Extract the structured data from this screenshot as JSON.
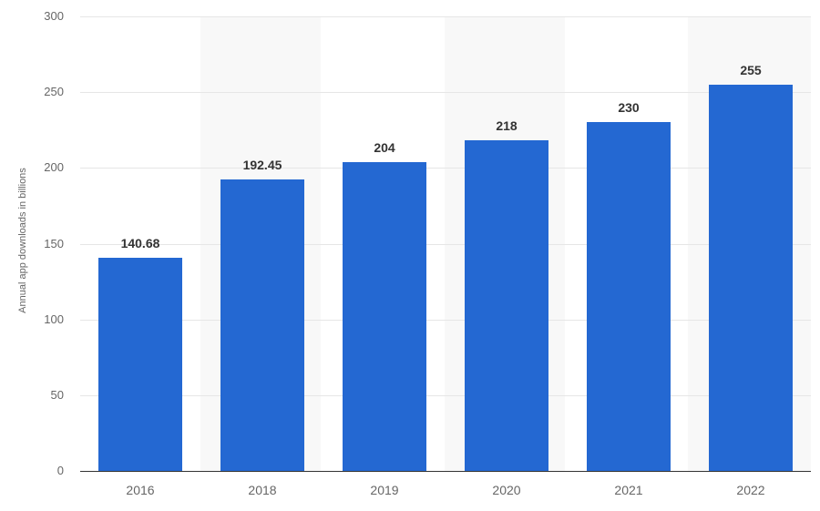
{
  "chart_data": {
    "type": "bar",
    "title": "",
    "xlabel": "",
    "ylabel": "Annual app downloads in billions",
    "categories": [
      "2016",
      "2018",
      "2019",
      "2020",
      "2021",
      "2022"
    ],
    "values": [
      140.68,
      192.45,
      204,
      218,
      230,
      255
    ],
    "value_labels": [
      "140.68",
      "192.45",
      "204",
      "218",
      "230",
      "255"
    ],
    "ylim": [
      0,
      300
    ],
    "yticks": [
      "0",
      "50",
      "100",
      "150",
      "200",
      "250",
      "300"
    ],
    "grid": true,
    "legend": null,
    "bar_color": "#2468d2"
  }
}
